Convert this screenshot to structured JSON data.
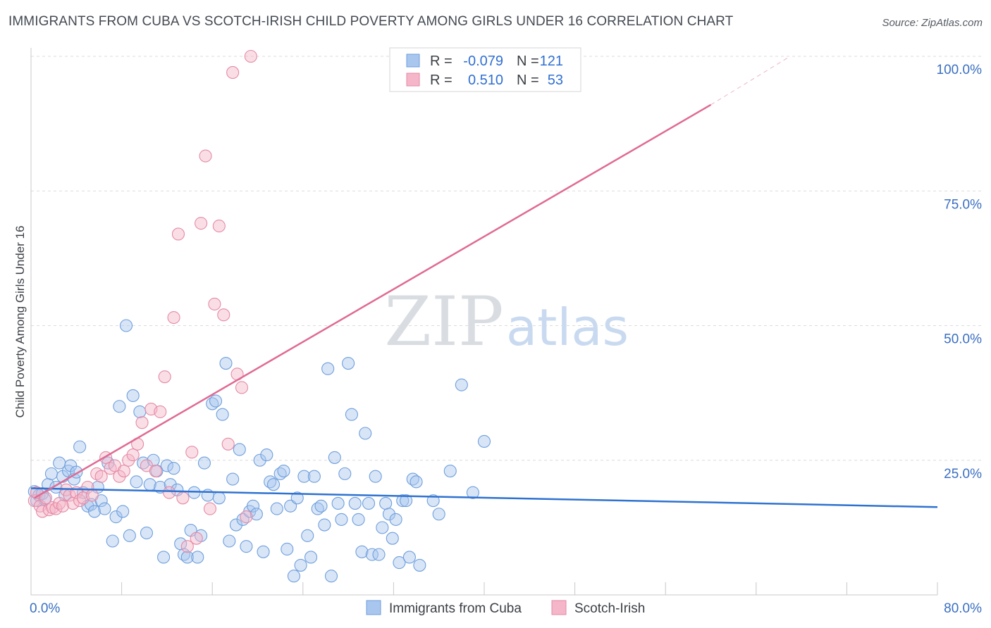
{
  "title": "IMMIGRANTS FROM CUBA VS SCOTCH-IRISH CHILD POVERTY AMONG GIRLS UNDER 16 CORRELATION CHART",
  "source": "Source: ZipAtlas.com",
  "watermark": {
    "zip": "ZIP",
    "atlas": "atlas"
  },
  "colors": {
    "blue_fill": "#a9c6ee",
    "blue_stroke": "#6f9fdc",
    "blue_line": "#2f72d0",
    "pink_fill": "#f4b6c8",
    "pink_stroke": "#e58aa6",
    "pink_line": "#e06a93",
    "tick_label": "#3a6fc2",
    "grid": "#dcdcdc"
  },
  "legend": {
    "rows": [
      {
        "r_label": "R =",
        "r_value": "-0.079",
        "n_label": "N =",
        "n_value": "121",
        "series": "blue"
      },
      {
        "r_label": "R =",
        "r_value": "0.510",
        "n_label": "N =",
        "n_value": "53",
        "series": "pink"
      }
    ]
  },
  "chart_data": {
    "type": "scatter",
    "xlabel": "",
    "ylabel": "Child Poverty Among Girls Under 16",
    "xlim": [
      0,
      80
    ],
    "ylim": [
      0,
      100
    ],
    "x_tick_labels": [
      "0.0%",
      "80.0%"
    ],
    "y_ticks": [
      25,
      50,
      75,
      100
    ],
    "y_tick_labels": [
      "25.0%",
      "50.0%",
      "75.0%",
      "100.0%"
    ],
    "grid": true,
    "legend_position": "bottom",
    "series": [
      {
        "name": "Immigrants from Cuba",
        "color": "blue",
        "trend": {
          "x": [
            0,
            80
          ],
          "y": [
            19.8,
            16.3
          ]
        },
        "points": [
          [
            0.3,
            19.2
          ],
          [
            0.5,
            17.5
          ],
          [
            0.7,
            18.5
          ],
          [
            1.0,
            18.8
          ],
          [
            1.2,
            17.8
          ],
          [
            1.5,
            20.5
          ],
          [
            1.8,
            22.5
          ],
          [
            2.2,
            20.0
          ],
          [
            2.5,
            24.5
          ],
          [
            2.8,
            22.0
          ],
          [
            3.0,
            18.5
          ],
          [
            3.3,
            23.0
          ],
          [
            3.5,
            24.0
          ],
          [
            3.8,
            21.5
          ],
          [
            4.0,
            22.8
          ],
          [
            4.3,
            27.5
          ],
          [
            4.6,
            19.0
          ],
          [
            5.0,
            16.5
          ],
          [
            5.3,
            16.8
          ],
          [
            5.6,
            15.5
          ],
          [
            5.9,
            20.0
          ],
          [
            6.2,
            17.5
          ],
          [
            6.5,
            16.0
          ],
          [
            6.8,
            24.5
          ],
          [
            7.2,
            10.0
          ],
          [
            7.5,
            14.5
          ],
          [
            7.8,
            35.0
          ],
          [
            8.1,
            15.5
          ],
          [
            8.4,
            50.0
          ],
          [
            8.7,
            11.0
          ],
          [
            9.0,
            37.0
          ],
          [
            9.3,
            21.0
          ],
          [
            9.6,
            34.0
          ],
          [
            9.9,
            24.5
          ],
          [
            10.2,
            11.5
          ],
          [
            10.5,
            20.5
          ],
          [
            10.8,
            25.0
          ],
          [
            11.1,
            23.0
          ],
          [
            11.4,
            20.0
          ],
          [
            11.7,
            7.0
          ],
          [
            12.0,
            24.0
          ],
          [
            12.3,
            20.5
          ],
          [
            12.6,
            23.5
          ],
          [
            12.9,
            19.5
          ],
          [
            13.2,
            9.5
          ],
          [
            13.5,
            7.5
          ],
          [
            13.8,
            7.0
          ],
          [
            14.1,
            12.0
          ],
          [
            14.4,
            19.0
          ],
          [
            14.7,
            7.0
          ],
          [
            15.0,
            11.0
          ],
          [
            15.3,
            24.5
          ],
          [
            15.6,
            18.5
          ],
          [
            16.0,
            35.5
          ],
          [
            16.3,
            36.0
          ],
          [
            16.6,
            18.0
          ],
          [
            16.9,
            33.5
          ],
          [
            17.2,
            43.0
          ],
          [
            17.5,
            10.0
          ],
          [
            17.8,
            21.5
          ],
          [
            18.1,
            13.0
          ],
          [
            18.4,
            27.0
          ],
          [
            18.7,
            14.0
          ],
          [
            19.0,
            9.0
          ],
          [
            19.3,
            15.5
          ],
          [
            19.6,
            16.5
          ],
          [
            19.9,
            15.0
          ],
          [
            20.2,
            25.0
          ],
          [
            20.5,
            8.0
          ],
          [
            20.8,
            26.0
          ],
          [
            21.1,
            21.0
          ],
          [
            21.4,
            20.5
          ],
          [
            21.7,
            16.0
          ],
          [
            22.0,
            22.5
          ],
          [
            22.3,
            23.0
          ],
          [
            22.6,
            8.5
          ],
          [
            22.9,
            16.5
          ],
          [
            23.2,
            3.5
          ],
          [
            23.5,
            18.0
          ],
          [
            23.8,
            5.5
          ],
          [
            24.1,
            22.0
          ],
          [
            24.4,
            11.0
          ],
          [
            24.7,
            7.0
          ],
          [
            25.0,
            22.0
          ],
          [
            25.3,
            16.0
          ],
          [
            25.6,
            16.5
          ],
          [
            25.9,
            13.0
          ],
          [
            26.2,
            42.0
          ],
          [
            26.5,
            3.5
          ],
          [
            26.8,
            25.5
          ],
          [
            27.1,
            17.0
          ],
          [
            27.4,
            14.0
          ],
          [
            27.7,
            22.5
          ],
          [
            28.0,
            43.0
          ],
          [
            28.3,
            33.5
          ],
          [
            28.6,
            17.0
          ],
          [
            28.9,
            14.0
          ],
          [
            29.2,
            8.0
          ],
          [
            29.5,
            30.0
          ],
          [
            29.8,
            17.0
          ],
          [
            30.1,
            7.5
          ],
          [
            30.4,
            22.0
          ],
          [
            30.7,
            7.5
          ],
          [
            31.0,
            12.5
          ],
          [
            31.3,
            17.0
          ],
          [
            31.6,
            15.0
          ],
          [
            31.9,
            10.5
          ],
          [
            32.2,
            14.0
          ],
          [
            32.5,
            6.0
          ],
          [
            32.8,
            17.5
          ],
          [
            33.1,
            17.5
          ],
          [
            33.4,
            7.0
          ],
          [
            33.7,
            21.5
          ],
          [
            34.0,
            21.0
          ],
          [
            34.3,
            5.5
          ],
          [
            36.0,
            15.0
          ],
          [
            37.0,
            23.0
          ],
          [
            38.0,
            39.0
          ],
          [
            39.0,
            19.0
          ],
          [
            40.0,
            28.5
          ],
          [
            35.5,
            17.5
          ]
        ]
      },
      {
        "name": "Scotch-Irish",
        "color": "pink",
        "trend": {
          "x": [
            0.3,
            60
          ],
          "y": [
            18.0,
            91.0
          ]
        },
        "trend_extension": {
          "x": [
            60,
            67
          ],
          "y": [
            91.0,
            100
          ]
        },
        "points": [
          [
            0.3,
            17.5
          ],
          [
            0.5,
            19.0
          ],
          [
            0.8,
            16.5
          ],
          [
            1.0,
            15.5
          ],
          [
            1.3,
            18.0
          ],
          [
            1.6,
            15.8
          ],
          [
            1.9,
            16.2
          ],
          [
            2.2,
            16.0
          ],
          [
            2.5,
            17.0
          ],
          [
            2.8,
            16.5
          ],
          [
            3.1,
            19.5
          ],
          [
            3.4,
            18.5
          ],
          [
            3.7,
            17.0
          ],
          [
            4.0,
            19.0
          ],
          [
            4.3,
            17.5
          ],
          [
            4.6,
            18.0
          ],
          [
            5.0,
            20.0
          ],
          [
            5.4,
            18.5
          ],
          [
            5.8,
            22.5
          ],
          [
            6.2,
            22.0
          ],
          [
            6.6,
            25.5
          ],
          [
            7.0,
            23.5
          ],
          [
            7.4,
            24.0
          ],
          [
            7.8,
            22.0
          ],
          [
            8.2,
            23.0
          ],
          [
            8.6,
            25.0
          ],
          [
            9.0,
            26.0
          ],
          [
            9.4,
            28.0
          ],
          [
            9.8,
            32.0
          ],
          [
            10.2,
            24.0
          ],
          [
            10.6,
            34.5
          ],
          [
            11.0,
            23.0
          ],
          [
            11.4,
            34.0
          ],
          [
            11.8,
            40.5
          ],
          [
            12.2,
            19.0
          ],
          [
            12.6,
            51.5
          ],
          [
            13.0,
            67.0
          ],
          [
            13.4,
            18.0
          ],
          [
            13.8,
            9.0
          ],
          [
            14.2,
            26.5
          ],
          [
            14.6,
            10.5
          ],
          [
            15.0,
            69.0
          ],
          [
            15.4,
            81.5
          ],
          [
            15.8,
            16.0
          ],
          [
            16.2,
            54.0
          ],
          [
            16.6,
            68.5
          ],
          [
            17.0,
            52.0
          ],
          [
            17.4,
            28.0
          ],
          [
            17.8,
            97.0
          ],
          [
            18.2,
            41.0
          ],
          [
            18.6,
            38.5
          ],
          [
            19.0,
            14.5
          ],
          [
            19.4,
            100.0
          ]
        ]
      }
    ]
  }
}
